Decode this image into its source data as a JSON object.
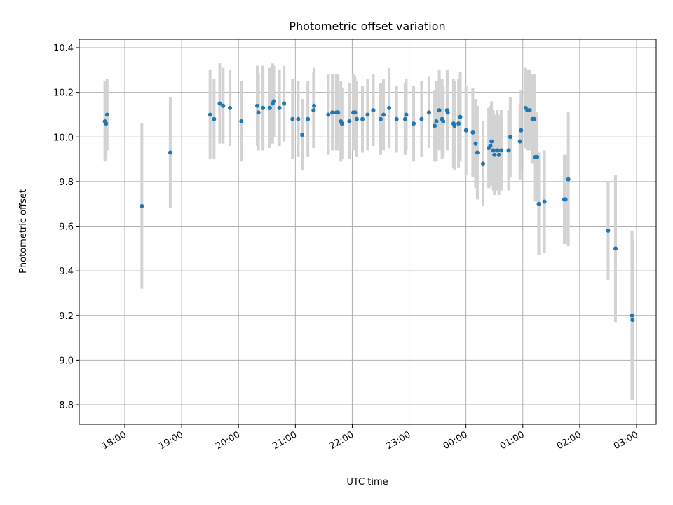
{
  "chart_data": {
    "type": "scatter",
    "title": "Photometric offset variation",
    "xlabel": "UTC time",
    "ylabel": "Photometric offset",
    "x_ticks": [
      "18:00",
      "19:00",
      "20:00",
      "21:00",
      "22:00",
      "23:00",
      "00:00",
      "01:00",
      "02:00",
      "03:00"
    ],
    "y_ticks": [
      "8.8",
      "9.0",
      "9.2",
      "9.4",
      "9.6",
      "9.8",
      "10.0",
      "10.2",
      "10.4"
    ],
    "ylim": [
      8.71,
      10.44
    ],
    "grid": true,
    "colors": {
      "point": "#1f77b4",
      "errorbar": "#d3d3d3",
      "grid": "#b0b0b0"
    },
    "x_unit": "hours since 00:00 UTC",
    "points": [
      {
        "x": -6.35,
        "y": 10.07,
        "err": 0.18
      },
      {
        "x": -6.33,
        "y": 10.06,
        "err": 0.16
      },
      {
        "x": -6.31,
        "y": 10.1,
        "err": 0.16
      },
      {
        "x": -5.7,
        "y": 9.69,
        "err": 0.37
      },
      {
        "x": -5.2,
        "y": 9.93,
        "err": 0.25
      },
      {
        "x": -4.5,
        "y": 10.1,
        "err": 0.2
      },
      {
        "x": -4.43,
        "y": 10.08,
        "err": 0.18
      },
      {
        "x": -4.33,
        "y": 10.15,
        "err": 0.18
      },
      {
        "x": -4.27,
        "y": 10.14,
        "err": 0.17
      },
      {
        "x": -4.15,
        "y": 10.13,
        "err": 0.17
      },
      {
        "x": -3.95,
        "y": 10.07,
        "err": 0.18
      },
      {
        "x": -3.67,
        "y": 10.14,
        "err": 0.18
      },
      {
        "x": -3.65,
        "y": 10.11,
        "err": 0.17
      },
      {
        "x": -3.57,
        "y": 10.13,
        "err": 0.19
      },
      {
        "x": -3.45,
        "y": 10.13,
        "err": 0.18
      },
      {
        "x": -3.4,
        "y": 10.15,
        "err": 0.18
      },
      {
        "x": -3.38,
        "y": 10.16,
        "err": 0.16
      },
      {
        "x": -3.28,
        "y": 10.13,
        "err": 0.17
      },
      {
        "x": -3.2,
        "y": 10.15,
        "err": 0.17
      },
      {
        "x": -3.05,
        "y": 10.08,
        "err": 0.18
      },
      {
        "x": -2.95,
        "y": 10.08,
        "err": 0.17
      },
      {
        "x": -2.88,
        "y": 10.01,
        "err": 0.16
      },
      {
        "x": -2.78,
        "y": 10.08,
        "err": 0.17
      },
      {
        "x": -2.68,
        "y": 10.12,
        "err": 0.17
      },
      {
        "x": -2.67,
        "y": 10.14,
        "err": 0.17
      },
      {
        "x": -2.42,
        "y": 10.1,
        "err": 0.18
      },
      {
        "x": -2.35,
        "y": 10.11,
        "err": 0.17
      },
      {
        "x": -2.28,
        "y": 10.11,
        "err": 0.17
      },
      {
        "x": -2.25,
        "y": 10.11,
        "err": 0.17
      },
      {
        "x": -2.2,
        "y": 10.07,
        "err": 0.18
      },
      {
        "x": -2.18,
        "y": 10.06,
        "err": 0.16
      },
      {
        "x": -2.05,
        "y": 10.07,
        "err": 0.17
      },
      {
        "x": -1.98,
        "y": 10.11,
        "err": 0.17
      },
      {
        "x": -1.95,
        "y": 10.11,
        "err": 0.16
      },
      {
        "x": -1.92,
        "y": 10.08,
        "err": 0.17
      },
      {
        "x": -1.82,
        "y": 10.08,
        "err": 0.15
      },
      {
        "x": -1.73,
        "y": 10.1,
        "err": 0.16
      },
      {
        "x": -1.63,
        "y": 10.12,
        "err": 0.16
      },
      {
        "x": -1.5,
        "y": 10.08,
        "err": 0.16
      },
      {
        "x": -1.45,
        "y": 10.1,
        "err": 0.16
      },
      {
        "x": -1.35,
        "y": 10.13,
        "err": 0.18
      },
      {
        "x": -1.22,
        "y": 10.08,
        "err": 0.15
      },
      {
        "x": -1.07,
        "y": 10.08,
        "err": 0.16
      },
      {
        "x": -1.05,
        "y": 10.1,
        "err": 0.16
      },
      {
        "x": -0.92,
        "y": 10.06,
        "err": 0.17
      },
      {
        "x": -0.78,
        "y": 10.08,
        "err": 0.17
      },
      {
        "x": -0.65,
        "y": 10.11,
        "err": 0.16
      },
      {
        "x": -0.55,
        "y": 10.05,
        "err": 0.16
      },
      {
        "x": -0.52,
        "y": 10.07,
        "err": 0.18
      },
      {
        "x": -0.47,
        "y": 10.12,
        "err": 0.18
      },
      {
        "x": -0.42,
        "y": 10.08,
        "err": 0.18
      },
      {
        "x": -0.4,
        "y": 10.07,
        "err": 0.16
      },
      {
        "x": -0.33,
        "y": 10.12,
        "err": 0.18
      },
      {
        "x": -0.32,
        "y": 10.11,
        "err": 0.17
      },
      {
        "x": -0.22,
        "y": 10.06,
        "err": 0.2
      },
      {
        "x": -0.2,
        "y": 10.05,
        "err": 0.2
      },
      {
        "x": -0.13,
        "y": 10.06,
        "err": 0.2
      },
      {
        "x": -0.1,
        "y": 10.09,
        "err": 0.2
      },
      {
        "x": 0.0,
        "y": 10.03,
        "err": 0.2
      },
      {
        "x": 0.12,
        "y": 10.02,
        "err": 0.2
      },
      {
        "x": 0.17,
        "y": 9.97,
        "err": 0.2
      },
      {
        "x": 0.2,
        "y": 9.93,
        "err": 0.21
      },
      {
        "x": 0.3,
        "y": 9.88,
        "err": 0.19
      },
      {
        "x": 0.4,
        "y": 9.95,
        "err": 0.18
      },
      {
        "x": 0.43,
        "y": 9.96,
        "err": 0.18
      },
      {
        "x": 0.45,
        "y": 9.98,
        "err": 0.18
      },
      {
        "x": 0.48,
        "y": 9.94,
        "err": 0.18
      },
      {
        "x": 0.5,
        "y": 9.92,
        "err": 0.18
      },
      {
        "x": 0.55,
        "y": 9.94,
        "err": 0.18
      },
      {
        "x": 0.58,
        "y": 9.92,
        "err": 0.18
      },
      {
        "x": 0.62,
        "y": 9.94,
        "err": 0.18
      },
      {
        "x": 0.75,
        "y": 9.94,
        "err": 0.18
      },
      {
        "x": 0.78,
        "y": 10.0,
        "err": 0.18
      },
      {
        "x": 0.95,
        "y": 9.98,
        "err": 0.17
      },
      {
        "x": 0.97,
        "y": 10.03,
        "err": 0.18
      },
      {
        "x": 1.05,
        "y": 10.13,
        "err": 0.18
      },
      {
        "x": 1.08,
        "y": 10.12,
        "err": 0.18
      },
      {
        "x": 1.12,
        "y": 10.12,
        "err": 0.18
      },
      {
        "x": 1.17,
        "y": 10.08,
        "err": 0.2
      },
      {
        "x": 1.2,
        "y": 10.08,
        "err": 0.2
      },
      {
        "x": 1.22,
        "y": 9.91,
        "err": 0.2
      },
      {
        "x": 1.25,
        "y": 9.91,
        "err": 0.2
      },
      {
        "x": 1.28,
        "y": 9.7,
        "err": 0.23
      },
      {
        "x": 1.38,
        "y": 9.71,
        "err": 0.23
      },
      {
        "x": 1.73,
        "y": 9.72,
        "err": 0.2
      },
      {
        "x": 1.75,
        "y": 9.72,
        "err": 0.2
      },
      {
        "x": 1.8,
        "y": 9.81,
        "err": 0.3
      },
      {
        "x": 2.5,
        "y": 9.58,
        "err": 0.22
      },
      {
        "x": 2.63,
        "y": 9.5,
        "err": 0.33
      },
      {
        "x": 2.92,
        "y": 9.2,
        "err": 0.38
      },
      {
        "x": 2.93,
        "y": 9.18,
        "err": 0.36
      }
    ]
  }
}
